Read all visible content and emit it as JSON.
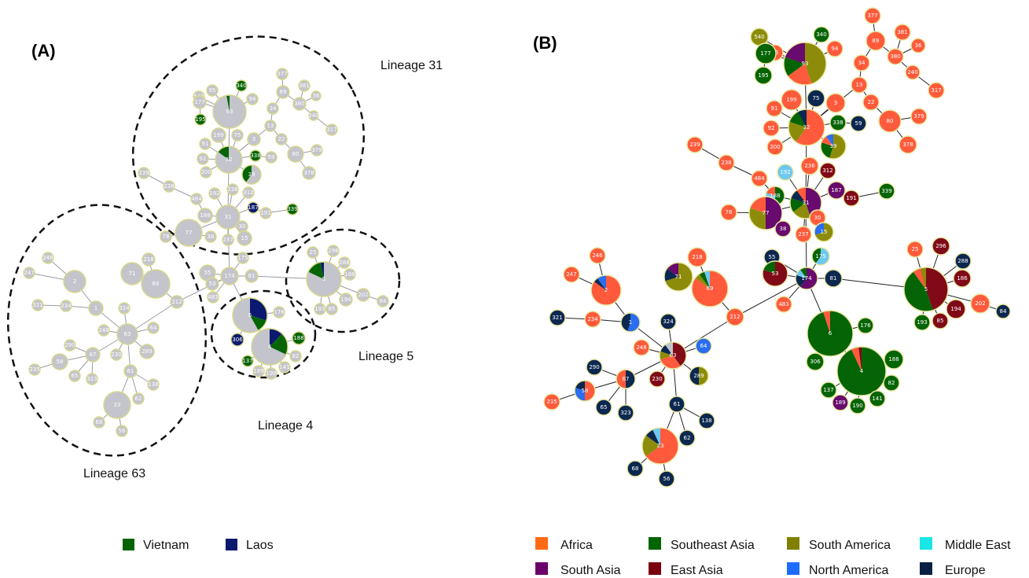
{
  "panel_a": {
    "label": "(A)",
    "lineages": [
      {
        "key": "31",
        "label": "Lineage 31"
      },
      {
        "key": "5",
        "label": "Lineage 5"
      },
      {
        "key": "4",
        "label": "Lineage 4"
      },
      {
        "key": "63",
        "label": "Lineage 63"
      }
    ],
    "legend": [
      {
        "name": "Vietnam",
        "color": "#006400"
      },
      {
        "name": "Laos",
        "color": "#0b1a6e"
      }
    ]
  },
  "panel_b": {
    "label": "(B)",
    "legend": [
      {
        "name": "Africa",
        "color": "#ff6a13"
      },
      {
        "name": "Southeast Asia",
        "color": "#006400"
      },
      {
        "name": "South America",
        "color": "#808000"
      },
      {
        "name": "Middle East",
        "color": "#19e6e6"
      },
      {
        "name": "South Asia",
        "color": "#6a006a"
      },
      {
        "name": "East Asia",
        "color": "#7a0010"
      },
      {
        "name": "North America",
        "color": "#1f6bff"
      },
      {
        "name": "Europe",
        "color": "#0a1f44"
      }
    ]
  },
  "node_colors": {
    "grey": "#c4c4cc",
    "orange": "#ff5a3c",
    "green": "#056405",
    "olive": "#8c8c0a",
    "purple": "#680a6e",
    "red": "#800a18",
    "blue": "#2a6df0",
    "navy": "#0c2850",
    "cyan": "#6ec8f0",
    "laos": "#0b1a6e",
    "outline_a": "#d8d889"
  },
  "nodes_b": [
    {
      "id": "95",
      "color": "orange"
    },
    {
      "id": "340",
      "color": "green"
    },
    {
      "id": "94",
      "color": "orange"
    },
    {
      "id": "93",
      "color": "olive",
      "pie": [
        {
          "c": "olive",
          "f": 0.45
        },
        {
          "c": "orange",
          "f": 0.2
        },
        {
          "c": "green",
          "f": 0.15
        },
        {
          "c": "purple",
          "f": 0.2
        }
      ]
    },
    {
      "id": "540",
      "color": "olive"
    },
    {
      "id": "177",
      "color": "green"
    },
    {
      "id": "195",
      "color": "green"
    },
    {
      "id": "377",
      "color": "orange"
    },
    {
      "id": "89",
      "color": "orange"
    },
    {
      "id": "381",
      "color": "orange"
    },
    {
      "id": "36",
      "color": "orange"
    },
    {
      "id": "380",
      "color": "orange"
    },
    {
      "id": "240",
      "color": "orange"
    },
    {
      "id": "317",
      "color": "orange"
    },
    {
      "id": "34",
      "color": "orange"
    },
    {
      "id": "13",
      "color": "orange"
    },
    {
      "id": "22",
      "color": "orange"
    },
    {
      "id": "80",
      "color": "orange"
    },
    {
      "id": "379",
      "color": "orange"
    },
    {
      "id": "378",
      "color": "orange"
    },
    {
      "id": "199",
      "color": "orange"
    },
    {
      "id": "75",
      "color": "navy"
    },
    {
      "id": "3",
      "color": "orange"
    },
    {
      "id": "91",
      "color": "orange"
    },
    {
      "id": "92",
      "color": "orange"
    },
    {
      "id": "200",
      "color": "orange"
    },
    {
      "id": "32",
      "color": "orange",
      "pie": [
        {
          "c": "orange",
          "f": 0.6
        },
        {
          "c": "olive",
          "f": 0.2
        },
        {
          "c": "green",
          "f": 0.12
        },
        {
          "c": "navy",
          "f": 0.08
        }
      ]
    },
    {
      "id": "338",
      "color": "green"
    },
    {
      "id": "59",
      "color": "navy"
    },
    {
      "id": "39",
      "color": "olive",
      "pie": [
        {
          "c": "olive",
          "f": 0.55
        },
        {
          "c": "green",
          "f": 0.25
        },
        {
          "c": "orange",
          "f": 0.1
        },
        {
          "c": "blue",
          "f": 0.1
        }
      ]
    },
    {
      "id": "239",
      "color": "orange"
    },
    {
      "id": "238",
      "color": "orange"
    },
    {
      "id": "484",
      "color": "orange"
    },
    {
      "id": "192",
      "color": "cyan"
    },
    {
      "id": "236",
      "color": "orange"
    },
    {
      "id": "312",
      "color": "red"
    },
    {
      "id": "187",
      "color": "purple"
    },
    {
      "id": "191",
      "color": "red"
    },
    {
      "id": "339",
      "color": "green"
    },
    {
      "id": "188",
      "color": "green",
      "pie": [
        {
          "c": "green",
          "f": 0.5
        },
        {
          "c": "cyan",
          "f": 0.3
        },
        {
          "c": "orange",
          "f": 0.2
        }
      ]
    },
    {
      "id": "31",
      "color": "purple",
      "pie": [
        {
          "c": "purple",
          "f": 0.45
        },
        {
          "c": "olive",
          "f": 0.2
        },
        {
          "c": "green",
          "f": 0.15
        },
        {
          "c": "navy",
          "f": 0.1
        },
        {
          "c": "orange",
          "f": 0.1
        }
      ]
    },
    {
      "id": "78",
      "color": "orange"
    },
    {
      "id": "77",
      "color": "purple",
      "pie": [
        {
          "c": "purple",
          "f": 0.5
        },
        {
          "c": "olive",
          "f": 0.3
        },
        {
          "c": "orange",
          "f": 0.2
        }
      ]
    },
    {
      "id": "38",
      "color": "purple"
    },
    {
      "id": "30",
      "color": "orange"
    },
    {
      "id": "237",
      "color": "orange"
    },
    {
      "id": "15",
      "color": "olive",
      "pie": [
        {
          "c": "olive",
          "f": 0.7
        },
        {
          "c": "blue",
          "f": 0.3
        }
      ]
    },
    {
      "id": "218",
      "color": "orange"
    },
    {
      "id": "246",
      "color": "orange"
    },
    {
      "id": "247",
      "color": "orange"
    },
    {
      "id": "2",
      "color": "orange",
      "pie": [
        {
          "c": "orange",
          "f": 0.85
        },
        {
          "c": "navy",
          "f": 0.05
        },
        {
          "c": "blue",
          "f": 0.1
        }
      ]
    },
    {
      "id": "71",
      "color": "olive",
      "pie": [
        {
          "c": "olive",
          "f": 0.7
        },
        {
          "c": "navy",
          "f": 0.15
        },
        {
          "c": "purple",
          "f": 0.15
        }
      ]
    },
    {
      "id": "69",
      "color": "orange",
      "pie": [
        {
          "c": "orange",
          "f": 0.85
        },
        {
          "c": "olive",
          "f": 0.05
        },
        {
          "c": "green",
          "f": 0.05
        },
        {
          "c": "cyan",
          "f": 0.05
        }
      ]
    },
    {
      "id": "212",
      "color": "orange"
    },
    {
      "id": "321",
      "color": "navy"
    },
    {
      "id": "234",
      "color": "orange"
    },
    {
      "id": "1",
      "color": "navy",
      "pie": [
        {
          "c": "blue",
          "f": 0.55
        },
        {
          "c": "navy",
          "f": 0.45
        }
      ]
    },
    {
      "id": "324",
      "color": "navy"
    },
    {
      "id": "64",
      "color": "blue"
    },
    {
      "id": "248",
      "color": "orange"
    },
    {
      "id": "63",
      "color": "red",
      "pie": [
        {
          "c": "red",
          "f": 0.4
        },
        {
          "c": "orange",
          "f": 0.3
        },
        {
          "c": "olive",
          "f": 0.1
        },
        {
          "c": "navy",
          "f": 0.1
        },
        {
          "c": "grey",
          "f": 0.1
        }
      ]
    },
    {
      "id": "289",
      "color": "olive",
      "pie": [
        {
          "c": "olive",
          "f": 0.5
        },
        {
          "c": "navy",
          "f": 0.5
        }
      ]
    },
    {
      "id": "230",
      "color": "red"
    },
    {
      "id": "290",
      "color": "navy"
    },
    {
      "id": "67",
      "color": "navy",
      "pie": [
        {
          "c": "navy",
          "f": 0.5
        },
        {
          "c": "orange",
          "f": 0.5
        }
      ]
    },
    {
      "id": "58",
      "color": "orange",
      "pie": [
        {
          "c": "orange",
          "f": 0.5
        },
        {
          "c": "blue",
          "f": 0.3
        },
        {
          "c": "navy",
          "f": 0.2
        }
      ]
    },
    {
      "id": "235",
      "color": "orange"
    },
    {
      "id": "65",
      "color": "navy"
    },
    {
      "id": "323",
      "color": "navy"
    },
    {
      "id": "61",
      "color": "navy"
    },
    {
      "id": "138",
      "color": "navy"
    },
    {
      "id": "62",
      "color": "navy"
    },
    {
      "id": "23",
      "color": "orange",
      "pie": [
        {
          "c": "orange",
          "f": 0.65
        },
        {
          "c": "olive",
          "f": 0.2
        },
        {
          "c": "navy",
          "f": 0.08
        },
        {
          "c": "cyan",
          "f": 0.07
        }
      ]
    },
    {
      "id": "68",
      "color": "navy"
    },
    {
      "id": "56",
      "color": "navy"
    },
    {
      "id": "55",
      "color": "navy"
    },
    {
      "id": "175",
      "color": "cyan",
      "pie": [
        {
          "c": "cyan",
          "f": 0.6
        },
        {
          "c": "green",
          "f": 0.4
        }
      ]
    },
    {
      "id": "53",
      "color": "red",
      "pie": [
        {
          "c": "red",
          "f": 0.8
        },
        {
          "c": "green",
          "f": 0.2
        }
      ]
    },
    {
      "id": "174",
      "color": "purple",
      "pie": [
        {
          "c": "purple",
          "f": 0.6
        },
        {
          "c": "navy",
          "f": 0.2
        },
        {
          "c": "cyan",
          "f": 0.1
        },
        {
          "c": "green",
          "f": 0.1
        }
      ]
    },
    {
      "id": "81",
      "color": "navy"
    },
    {
      "id": "483",
      "color": "orange"
    },
    {
      "id": "25",
      "color": "orange"
    },
    {
      "id": "296",
      "color": "red"
    },
    {
      "id": "288",
      "color": "navy"
    },
    {
      "id": "186",
      "color": "red"
    },
    {
      "id": "5",
      "color": "red",
      "pie": [
        {
          "c": "red",
          "f": 0.45
        },
        {
          "c": "green",
          "f": 0.45
        },
        {
          "c": "orange",
          "f": 0.06
        },
        {
          "c": "olive",
          "f": 0.04
        }
      ]
    },
    {
      "id": "194",
      "color": "red"
    },
    {
      "id": "202",
      "color": "orange"
    },
    {
      "id": "84",
      "color": "navy"
    },
    {
      "id": "193",
      "color": "green"
    },
    {
      "id": "85",
      "color": "red"
    },
    {
      "id": "6",
      "color": "green",
      "pie": [
        {
          "c": "green",
          "f": 0.95
        },
        {
          "c": "orange",
          "f": 0.05
        }
      ]
    },
    {
      "id": "176",
      "color": "green"
    },
    {
      "id": "306",
      "color": "green"
    },
    {
      "id": "4",
      "color": "green",
      "pie": [
        {
          "c": "green",
          "f": 0.93
        },
        {
          "c": "orange",
          "f": 0.05
        },
        {
          "c": "red",
          "f": 0.02
        }
      ]
    },
    {
      "id": "188b",
      "label": "188",
      "color": "green"
    },
    {
      "id": "82",
      "color": "green"
    },
    {
      "id": "137",
      "color": "green"
    },
    {
      "id": "141",
      "color": "green"
    },
    {
      "id": "190",
      "color": "green"
    },
    {
      "id": "189",
      "color": "purple"
    }
  ],
  "nodes_a": [
    {
      "id": "a_95",
      "label": "95"
    },
    {
      "id": "a_340",
      "label": "340",
      "color": "green"
    },
    {
      "id": "a_94",
      "label": "94"
    },
    {
      "id": "a_93",
      "label": "93",
      "pie": [
        {
          "c": "grey",
          "f": 0.97
        },
        {
          "c": "green",
          "f": 0.03
        }
      ]
    },
    {
      "id": "a_540",
      "label": "540"
    },
    {
      "id": "a_177",
      "label": "177"
    },
    {
      "id": "a_195",
      "label": "195",
      "color": "green"
    },
    {
      "id": "a_377",
      "label": "377"
    },
    {
      "id": "a_89",
      "label": "89"
    },
    {
      "id": "a_381",
      "label": "381"
    },
    {
      "id": "a_36",
      "label": "36"
    },
    {
      "id": "a_380",
      "label": "380"
    },
    {
      "id": "a_240",
      "label": "240"
    },
    {
      "id": "a_317",
      "label": "317"
    },
    {
      "id": "a_34",
      "label": "34"
    },
    {
      "id": "a_13",
      "label": "13"
    },
    {
      "id": "a_22",
      "label": "22"
    },
    {
      "id": "a_80",
      "label": "80"
    },
    {
      "id": "a_379",
      "label": "379"
    },
    {
      "id": "a_378",
      "label": "378"
    },
    {
      "id": "a_199",
      "label": "199"
    },
    {
      "id": "a_75",
      "label": "75"
    },
    {
      "id": "a_3",
      "label": "3"
    },
    {
      "id": "a_91",
      "label": "91"
    },
    {
      "id": "a_92",
      "label": "92"
    },
    {
      "id": "a_200",
      "label": "200"
    },
    {
      "id": "a_32",
      "label": "32",
      "pie": [
        {
          "c": "grey",
          "f": 0.85
        },
        {
          "c": "green",
          "f": 0.15
        }
      ]
    },
    {
      "id": "a_338",
      "label": "338",
      "color": "green"
    },
    {
      "id": "a_59",
      "label": "59"
    },
    {
      "id": "a_39",
      "label": "39",
      "pie": [
        {
          "c": "grey",
          "f": 0.6
        },
        {
          "c": "green",
          "f": 0.4
        }
      ]
    },
    {
      "id": "a_239",
      "label": "239"
    },
    {
      "id": "a_238",
      "label": "238"
    },
    {
      "id": "a_484",
      "label": "484"
    },
    {
      "id": "a_192",
      "label": "192"
    },
    {
      "id": "a_236",
      "label": "236"
    },
    {
      "id": "a_312",
      "label": "312"
    },
    {
      "id": "a_187",
      "label": "187",
      "color": "laos"
    },
    {
      "id": "a_191",
      "label": "191"
    },
    {
      "id": "a_339",
      "label": "339",
      "color": "green"
    },
    {
      "id": "a_188",
      "label": "188"
    },
    {
      "id": "a_31",
      "label": "31"
    },
    {
      "id": "a_78",
      "label": "78"
    },
    {
      "id": "a_77",
      "label": "77"
    },
    {
      "id": "a_38",
      "label": "38"
    },
    {
      "id": "a_30",
      "label": "30"
    },
    {
      "id": "a_237",
      "label": "237"
    },
    {
      "id": "a_15",
      "label": "15"
    },
    {
      "id": "a_175",
      "label": "175"
    },
    {
      "id": "a_55",
      "label": "55"
    },
    {
      "id": "a_53",
      "label": "53"
    },
    {
      "id": "a_174",
      "label": "174"
    },
    {
      "id": "a_81",
      "label": "81"
    },
    {
      "id": "a_483",
      "label": "483"
    },
    {
      "id": "a_25",
      "label": "25"
    },
    {
      "id": "a_296",
      "label": "296"
    },
    {
      "id": "a_288",
      "label": "288"
    },
    {
      "id": "a_186",
      "label": "186"
    },
    {
      "id": "a_5",
      "label": "5",
      "pie": [
        {
          "c": "grey",
          "f": 0.82
        },
        {
          "c": "green",
          "f": 0.15
        },
        {
          "c": "laos",
          "f": 0.03
        }
      ]
    },
    {
      "id": "a_194",
      "label": "194"
    },
    {
      "id": "a_202",
      "label": "202"
    },
    {
      "id": "a_84",
      "label": "84"
    },
    {
      "id": "a_193",
      "label": "193"
    },
    {
      "id": "a_85",
      "label": "85"
    },
    {
      "id": "a_6",
      "label": "6",
      "pie": [
        {
          "c": "laos",
          "f": 0.3
        },
        {
          "c": "green",
          "f": 0.12
        },
        {
          "c": "grey",
          "f": 0.58
        }
      ]
    },
    {
      "id": "a_176",
      "label": "176"
    },
    {
      "id": "a_306",
      "label": "306",
      "color": "laos"
    },
    {
      "id": "a_4",
      "label": "4",
      "pie": [
        {
          "c": "laos",
          "f": 0.12
        },
        {
          "c": "green",
          "f": 0.2
        },
        {
          "c": "grey",
          "f": 0.68
        }
      ]
    },
    {
      "id": "a_188b",
      "label": "188",
      "color": "green"
    },
    {
      "id": "a_82",
      "label": "82"
    },
    {
      "id": "a_137",
      "label": "137",
      "color": "green"
    },
    {
      "id": "a_141",
      "label": "141"
    },
    {
      "id": "a_190",
      "label": "190"
    },
    {
      "id": "a_189",
      "label": "189"
    },
    {
      "id": "a_218",
      "label": "218"
    },
    {
      "id": "a_246",
      "label": "246"
    },
    {
      "id": "a_247",
      "label": "247"
    },
    {
      "id": "a_2",
      "label": "2"
    },
    {
      "id": "a_71",
      "label": "71"
    },
    {
      "id": "a_69",
      "label": "69"
    },
    {
      "id": "a_212",
      "label": "212"
    },
    {
      "id": "a_321",
      "label": "321"
    },
    {
      "id": "a_234",
      "label": "234"
    },
    {
      "id": "a_1",
      "label": "1"
    },
    {
      "id": "a_324",
      "label": "324"
    },
    {
      "id": "a_64",
      "label": "64"
    },
    {
      "id": "a_248",
      "label": "248"
    },
    {
      "id": "a_63",
      "label": "63"
    },
    {
      "id": "a_289",
      "label": "289"
    },
    {
      "id": "a_230",
      "label": "230"
    },
    {
      "id": "a_290",
      "label": "290"
    },
    {
      "id": "a_67",
      "label": "67"
    },
    {
      "id": "a_58",
      "label": "58"
    },
    {
      "id": "a_235",
      "label": "235"
    },
    {
      "id": "a_65",
      "label": "65"
    },
    {
      "id": "a_323",
      "label": "323"
    },
    {
      "id": "a_61",
      "label": "61"
    },
    {
      "id": "a_138",
      "label": "138"
    },
    {
      "id": "a_62",
      "label": "62"
    },
    {
      "id": "a_23",
      "label": "23"
    },
    {
      "id": "a_68",
      "label": "68"
    },
    {
      "id": "a_56",
      "label": "56"
    }
  ]
}
